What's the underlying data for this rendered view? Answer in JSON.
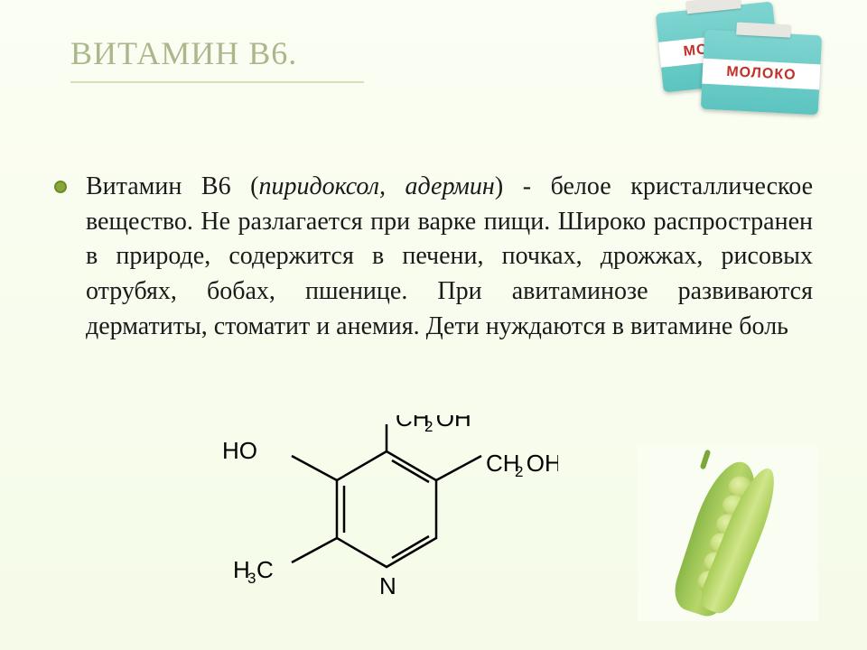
{
  "title": "ВИТАМИН В6.",
  "body_html": "Витамин В6 (<span class='italic'>пиридоксол, адермин</span>) - белое кристаллическое вещество. Не разлагается при варке пищи. Широко распространен в природе, содержится в печени, почках, дрожжах, рисовых отрубях, бобах, пшенице. При авитаминозе развиваются дерматиты, стоматит и анемия. Дети нуждаются в витамине боль",
  "milk_label": "МОЛОКО",
  "chem": {
    "labels": {
      "ho": "HO",
      "h3c": "H C",
      "h3c_sub": "3",
      "ch2oh_top": "CH OH",
      "ch2oh_top_sub": "2",
      "ch2oh_right": "CH OH",
      "ch2oh_right_sub": "2",
      "n": "N"
    }
  }
}
